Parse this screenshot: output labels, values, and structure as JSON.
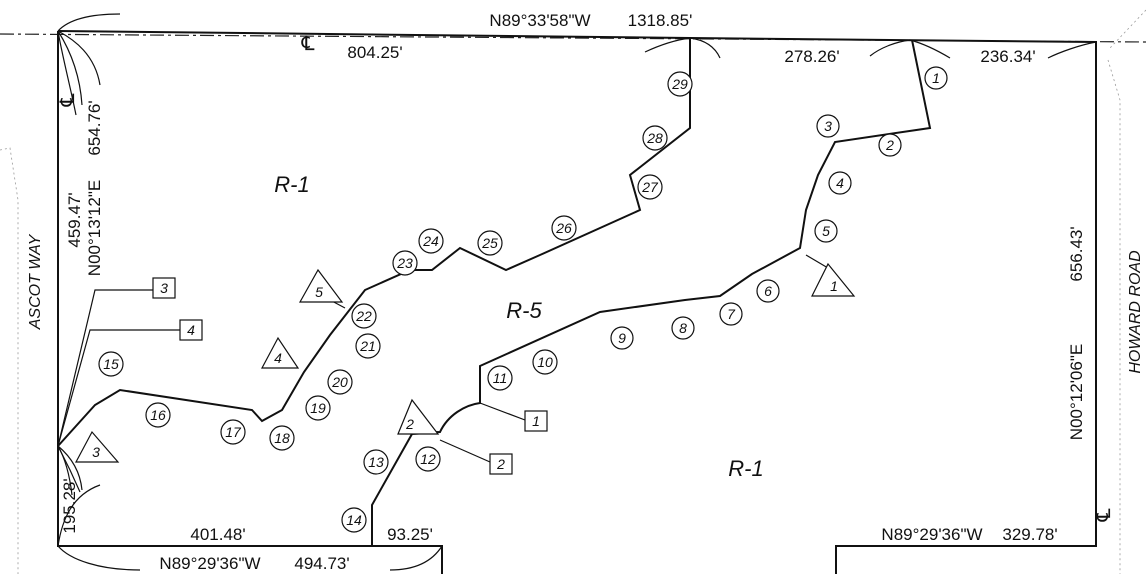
{
  "bearings": {
    "top": "N89°33'58\"W",
    "bottom_left": "N89°29'36\"W",
    "bottom_right": "N89°29'36\"W",
    "left": "N00°13'12\"E",
    "right": "N00°12'06\"E"
  },
  "distances": {
    "top_total": "1318.85'",
    "top_seg1": "804.25'",
    "top_seg2": "278.26'",
    "top_seg3": "236.34'",
    "left_upper": "654.76'",
    "left_mid": "459.47'",
    "left_lower": "195.28'",
    "bottom_seg1": "401.48'",
    "bottom_seg2": "93.25'",
    "bottom_total": "494.73'",
    "right": "656.43'",
    "bottom_right": "329.78'"
  },
  "streets": {
    "left": "ASCOT WAY",
    "right": "HOWARD ROAD"
  },
  "centerline_symbol": "℄",
  "zones": {
    "upper_left": "R-1",
    "center": "R-5",
    "lower_right": "R-1"
  },
  "circled_numbers": [
    "1",
    "2",
    "3",
    "4",
    "5",
    "6",
    "7",
    "8",
    "9",
    "10",
    "11",
    "12",
    "13",
    "14",
    "15",
    "16",
    "17",
    "18",
    "19",
    "20",
    "21",
    "22",
    "23",
    "24",
    "25",
    "26",
    "27",
    "28",
    "29"
  ],
  "triangle_labels": [
    "1",
    "2",
    "3",
    "4",
    "5"
  ],
  "square_labels": [
    "1",
    "2",
    "3",
    "4"
  ]
}
